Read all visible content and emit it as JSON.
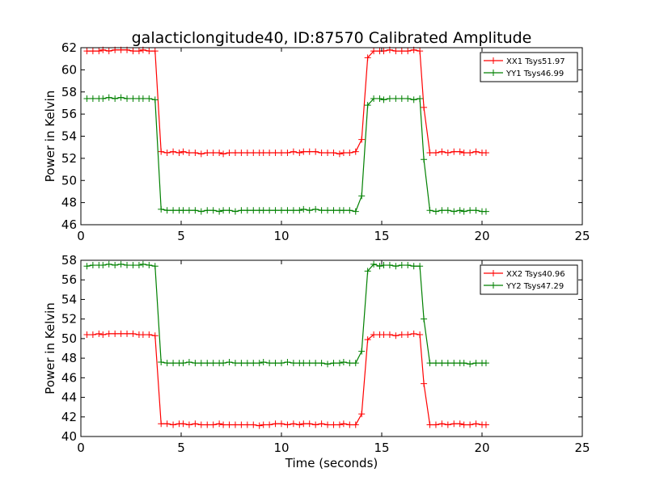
{
  "figure": {
    "title": "galacticlongitude40, ID:87570 Calibrated Amplitude",
    "xlabel": "Time (seconds)"
  },
  "chart_data": [
    {
      "type": "line",
      "ylabel": "Power in Kelvin",
      "xlim": [
        0,
        25
      ],
      "ylim": [
        46,
        62
      ],
      "xticks": [
        0,
        5,
        10,
        15,
        20,
        25
      ],
      "yticks": [
        46,
        48,
        50,
        52,
        54,
        56,
        58,
        60,
        62
      ],
      "grid": false,
      "legend": "top-right",
      "series": [
        {
          "name": "XX1 Tsys51.97",
          "color": "#ff0000",
          "x": [
            0.3,
            0.6,
            0.9,
            1.1,
            1.4,
            1.7,
            2.0,
            2.3,
            2.6,
            2.9,
            3.1,
            3.4,
            3.7,
            4.0,
            4.3,
            4.6,
            4.9,
            5.1,
            5.4,
            5.7,
            6.0,
            6.3,
            6.6,
            6.9,
            7.1,
            7.4,
            7.7,
            8.0,
            8.3,
            8.6,
            8.9,
            9.1,
            9.4,
            9.7,
            10.0,
            10.3,
            10.6,
            10.9,
            11.1,
            11.4,
            11.7,
            12.0,
            12.3,
            12.6,
            12.9,
            13.1,
            13.4,
            13.7,
            14.0,
            14.3,
            14.6,
            14.9,
            15.1,
            15.4,
            15.7,
            16.0,
            16.3,
            16.6,
            16.9,
            17.1,
            17.4,
            17.7,
            18.0,
            18.3,
            18.6,
            18.9,
            19.1,
            19.4,
            19.7,
            20.0,
            20.2
          ],
          "y": [
            61.7,
            61.7,
            61.7,
            61.8,
            61.7,
            61.8,
            61.8,
            61.8,
            61.7,
            61.7,
            61.8,
            61.7,
            61.7,
            52.6,
            52.5,
            52.6,
            52.5,
            52.6,
            52.5,
            52.5,
            52.4,
            52.5,
            52.5,
            52.5,
            52.4,
            52.5,
            52.5,
            52.5,
            52.5,
            52.5,
            52.5,
            52.5,
            52.5,
            52.5,
            52.5,
            52.5,
            52.6,
            52.5,
            52.6,
            52.6,
            52.6,
            52.5,
            52.5,
            52.5,
            52.4,
            52.5,
            52.5,
            52.6,
            53.7,
            61.1,
            61.7,
            61.7,
            61.7,
            61.8,
            61.7,
            61.7,
            61.7,
            61.8,
            61.7,
            56.6,
            52.5,
            52.5,
            52.6,
            52.5,
            52.6,
            52.6,
            52.5,
            52.5,
            52.6,
            52.5,
            52.5
          ]
        },
        {
          "name": "YY1 Tsys46.99",
          "color": "#008000",
          "x": [
            0.3,
            0.6,
            0.9,
            1.1,
            1.4,
            1.7,
            2.0,
            2.3,
            2.6,
            2.9,
            3.1,
            3.4,
            3.7,
            4.0,
            4.3,
            4.6,
            4.9,
            5.1,
            5.4,
            5.7,
            6.0,
            6.3,
            6.6,
            6.9,
            7.1,
            7.4,
            7.7,
            8.0,
            8.3,
            8.6,
            8.9,
            9.1,
            9.4,
            9.7,
            10.0,
            10.3,
            10.6,
            10.9,
            11.1,
            11.4,
            11.7,
            12.0,
            12.3,
            12.6,
            12.9,
            13.1,
            13.4,
            13.7,
            14.0,
            14.3,
            14.6,
            14.9,
            15.1,
            15.4,
            15.7,
            16.0,
            16.3,
            16.6,
            16.9,
            17.1,
            17.4,
            17.7,
            18.0,
            18.3,
            18.6,
            18.9,
            19.1,
            19.4,
            19.7,
            20.0,
            20.2
          ],
          "y": [
            57.4,
            57.4,
            57.4,
            57.4,
            57.5,
            57.4,
            57.5,
            57.4,
            57.4,
            57.4,
            57.4,
            57.4,
            57.3,
            47.4,
            47.3,
            47.3,
            47.3,
            47.3,
            47.3,
            47.3,
            47.2,
            47.3,
            47.3,
            47.2,
            47.3,
            47.3,
            47.2,
            47.3,
            47.3,
            47.3,
            47.3,
            47.3,
            47.3,
            47.3,
            47.3,
            47.3,
            47.3,
            47.3,
            47.4,
            47.3,
            47.4,
            47.3,
            47.3,
            47.3,
            47.3,
            47.3,
            47.3,
            47.2,
            48.6,
            56.8,
            57.4,
            57.4,
            57.3,
            57.4,
            57.4,
            57.4,
            57.4,
            57.3,
            57.4,
            51.9,
            47.3,
            47.2,
            47.3,
            47.3,
            47.2,
            47.3,
            47.2,
            47.3,
            47.3,
            47.2,
            47.2
          ]
        }
      ]
    },
    {
      "type": "line",
      "ylabel": "Power in Kelvin",
      "xlim": [
        0,
        25
      ],
      "ylim": [
        40,
        58
      ],
      "xticks": [
        0,
        5,
        10,
        15,
        20,
        25
      ],
      "yticks": [
        40,
        42,
        44,
        46,
        48,
        50,
        52,
        54,
        56,
        58
      ],
      "grid": false,
      "legend": "top-right",
      "series": [
        {
          "name": "XX2 Tsys40.96",
          "color": "#ff0000",
          "x": [
            0.3,
            0.6,
            0.9,
            1.1,
            1.4,
            1.7,
            2.0,
            2.3,
            2.6,
            2.9,
            3.1,
            3.4,
            3.7,
            4.0,
            4.3,
            4.6,
            4.9,
            5.1,
            5.4,
            5.7,
            6.0,
            6.3,
            6.6,
            6.9,
            7.1,
            7.4,
            7.7,
            8.0,
            8.3,
            8.6,
            8.9,
            9.1,
            9.4,
            9.7,
            10.0,
            10.3,
            10.6,
            10.9,
            11.1,
            11.4,
            11.7,
            12.0,
            12.3,
            12.6,
            12.9,
            13.1,
            13.4,
            13.7,
            14.0,
            14.3,
            14.6,
            14.9,
            15.1,
            15.4,
            15.7,
            16.0,
            16.3,
            16.6,
            16.9,
            17.1,
            17.4,
            17.7,
            18.0,
            18.3,
            18.6,
            18.9,
            19.1,
            19.4,
            19.7,
            20.0,
            20.2
          ],
          "y": [
            50.4,
            50.4,
            50.5,
            50.4,
            50.5,
            50.5,
            50.5,
            50.5,
            50.5,
            50.4,
            50.4,
            50.4,
            50.3,
            41.3,
            41.3,
            41.2,
            41.3,
            41.3,
            41.2,
            41.3,
            41.2,
            41.2,
            41.2,
            41.3,
            41.2,
            41.2,
            41.2,
            41.2,
            41.2,
            41.2,
            41.1,
            41.2,
            41.2,
            41.3,
            41.3,
            41.2,
            41.3,
            41.2,
            41.3,
            41.3,
            41.2,
            41.3,
            41.2,
            41.2,
            41.2,
            41.3,
            41.2,
            41.2,
            42.3,
            49.9,
            50.4,
            50.4,
            50.4,
            50.4,
            50.3,
            50.4,
            50.4,
            50.5,
            50.4,
            45.4,
            41.2,
            41.2,
            41.3,
            41.2,
            41.3,
            41.3,
            41.2,
            41.2,
            41.3,
            41.2,
            41.2
          ]
        },
        {
          "name": "YY2 Tsys47.29",
          "color": "#008000",
          "x": [
            0.3,
            0.6,
            0.9,
            1.1,
            1.4,
            1.7,
            2.0,
            2.3,
            2.6,
            2.9,
            3.1,
            3.4,
            3.7,
            4.0,
            4.3,
            4.6,
            4.9,
            5.1,
            5.4,
            5.7,
            6.0,
            6.3,
            6.6,
            6.9,
            7.1,
            7.4,
            7.7,
            8.0,
            8.3,
            8.6,
            8.9,
            9.1,
            9.4,
            9.7,
            10.0,
            10.3,
            10.6,
            10.9,
            11.1,
            11.4,
            11.7,
            12.0,
            12.3,
            12.6,
            12.9,
            13.1,
            13.4,
            13.7,
            14.0,
            14.3,
            14.6,
            14.9,
            15.1,
            15.4,
            15.7,
            16.0,
            16.3,
            16.6,
            16.9,
            17.1,
            17.4,
            17.7,
            18.0,
            18.3,
            18.6,
            18.9,
            19.1,
            19.4,
            19.7,
            20.0,
            20.2
          ],
          "y": [
            57.4,
            57.5,
            57.5,
            57.5,
            57.6,
            57.5,
            57.6,
            57.5,
            57.5,
            57.5,
            57.6,
            57.5,
            57.4,
            47.6,
            47.5,
            47.5,
            47.5,
            47.5,
            47.6,
            47.5,
            47.5,
            47.5,
            47.5,
            47.5,
            47.5,
            47.6,
            47.5,
            47.5,
            47.5,
            47.5,
            47.5,
            47.6,
            47.5,
            47.5,
            47.5,
            47.6,
            47.5,
            47.5,
            47.5,
            47.5,
            47.5,
            47.5,
            47.4,
            47.5,
            47.5,
            47.6,
            47.5,
            47.5,
            48.7,
            56.9,
            57.6,
            57.4,
            57.5,
            57.5,
            57.4,
            57.5,
            57.5,
            57.4,
            57.4,
            52.0,
            47.5,
            47.5,
            47.5,
            47.5,
            47.5,
            47.5,
            47.5,
            47.4,
            47.5,
            47.5,
            47.5
          ]
        }
      ]
    }
  ]
}
